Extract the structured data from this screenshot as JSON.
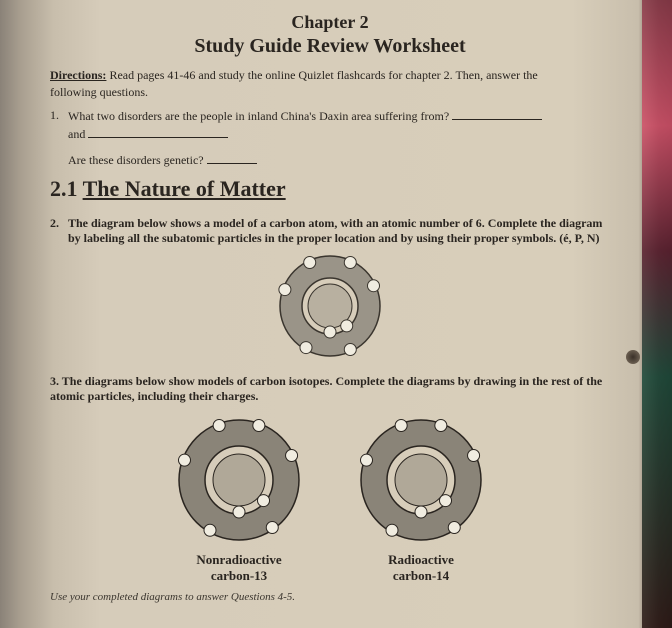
{
  "chapter": "Chapter 2",
  "worksheetTitle": "Study Guide Review Worksheet",
  "directionsLabel": "Directions:",
  "directionsText": "Read pages 41-46 and study the online Quizlet flashcards for chapter 2. Then, answer the",
  "following": "following questions.",
  "q1": {
    "num": "1.",
    "text": "What two disorders are the people in inland China's Daxin area suffering from?",
    "and": "and",
    "genetic": "Are these disorders genetic?"
  },
  "section": {
    "num": "2.1",
    "title": "The Nature of Matter"
  },
  "q2": {
    "num": "2.",
    "text": "The diagram below shows a model of a carbon atom, with an atomic number of 6. Complete the diagram by labeling all the subatomic particles in the proper location and by using their proper symbols. (é, P, N)"
  },
  "q3": {
    "text": "3. The diagrams below show models of carbon isotopes. Complete the diagrams by drawing in the rest of the atomic particles, including their charges."
  },
  "labels": {
    "c13a": "Nonradioactive",
    "c13b": "carbon-13",
    "c14a": "Radioactive",
    "c14b": "carbon-14"
  },
  "footer": "Use your completed diagrams to answer Questions 4-5.",
  "atom": {
    "single": {
      "size": 108,
      "outerR": 50,
      "innerR": 28,
      "nucleusR": 22,
      "ringFill": "#9a9488",
      "ringStroke": "#3a352e",
      "nucleusFill": "#b8b0a0",
      "electronFill": "#f0ece0",
      "electronStroke": "#3a352e",
      "electrons": [
        {
          "angle": -115,
          "r": 48
        },
        {
          "angle": -65,
          "r": 48
        },
        {
          "angle": -25,
          "r": 48
        },
        {
          "angle": 65,
          "r": 48
        },
        {
          "angle": 120,
          "r": 48
        },
        {
          "angle": 200,
          "r": 48
        }
      ],
      "inner_electrons": [
        {
          "angle": 90,
          "r": 26
        },
        {
          "angle": 50,
          "r": 26
        }
      ]
    },
    "pair": {
      "size": 132,
      "outerR": 60,
      "innerR": 34,
      "nucleusR": 26,
      "ringFill": "#8a8478",
      "ringStroke": "#2a2520",
      "nucleusFill": "#b0a898",
      "electronFill": "#f0ece0",
      "electronStroke": "#2a2520",
      "electrons": [
        {
          "angle": -110,
          "r": 58
        },
        {
          "angle": -70,
          "r": 58
        },
        {
          "angle": -25,
          "r": 58
        },
        {
          "angle": 55,
          "r": 58
        },
        {
          "angle": 120,
          "r": 58
        },
        {
          "angle": 200,
          "r": 58
        }
      ],
      "inner_electrons": [
        {
          "angle": 90,
          "r": 32
        },
        {
          "angle": 40,
          "r": 32
        }
      ]
    }
  }
}
